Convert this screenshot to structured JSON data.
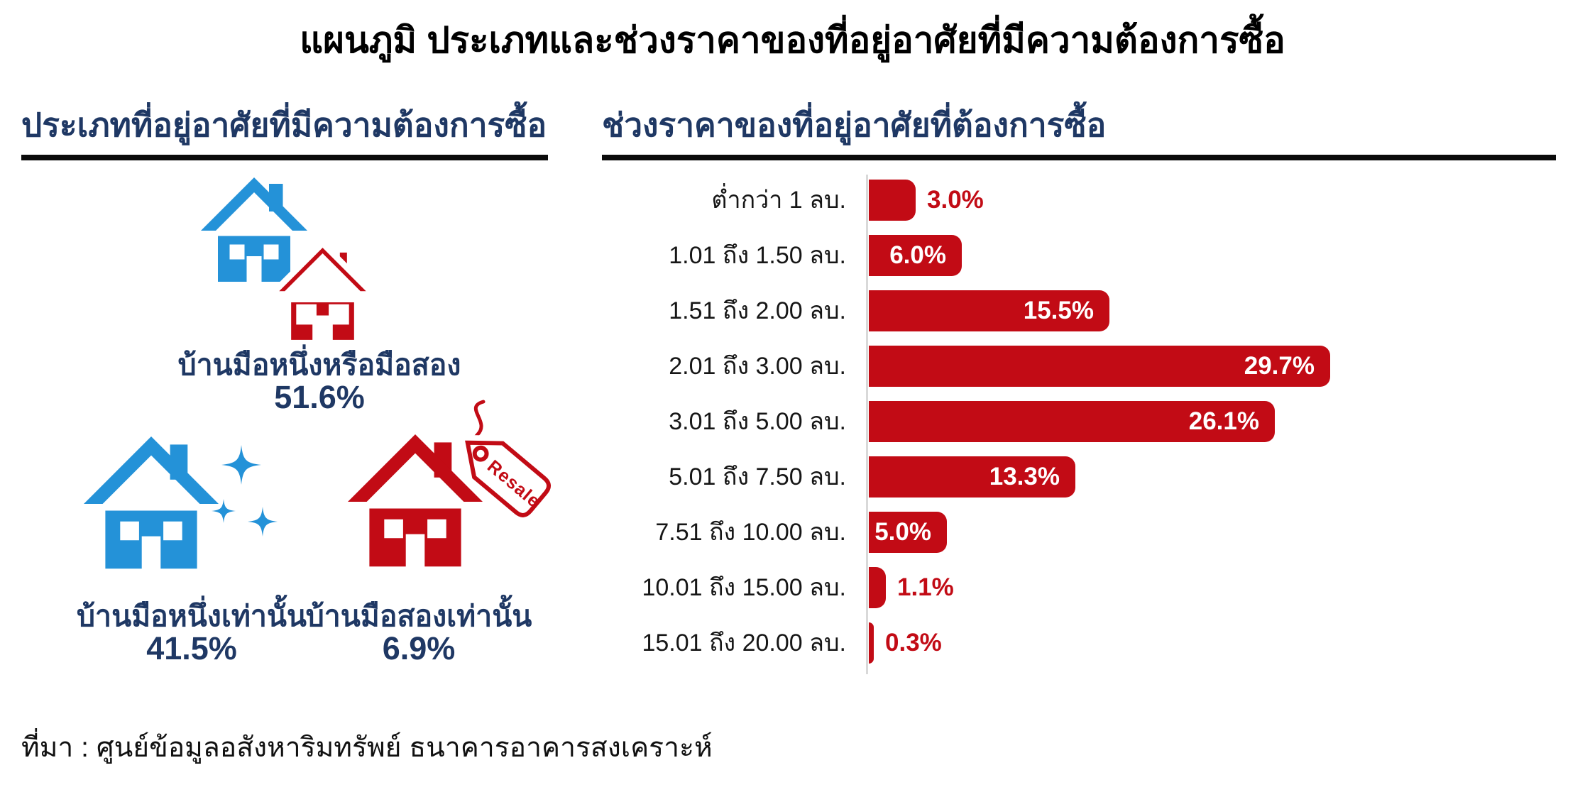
{
  "title": "แผนภูมิ ประเภทและช่วงราคาของที่อยู่อาศัยที่มีความต้องการซื้อ",
  "source": "ที่มา : ศูนย์ข้อมูลอสังหาริมทรัพย์ ธนาคารอาคารสงเคราะห์",
  "colors": {
    "red": "#C20B15",
    "blue": "#2492D8",
    "navy": "#1F3864",
    "axis_line": "#D9D9D9"
  },
  "chart_data": [
    {
      "type": "pictogram",
      "title": "ประเภทที่อยู่อาศัยที่มีความต้องการซื้อ",
      "categories": [
        "บ้านมือหนึ่งหรือมือสอง",
        "บ้านมือหนึ่งเท่านั้น",
        "บ้านมือสองเท่านั้น"
      ],
      "values": [
        51.6,
        41.5,
        6.9
      ],
      "value_labels": [
        "51.6%",
        "41.5%",
        "6.9%"
      ],
      "icons": [
        "house-new-or-resale",
        "house-new-sparkles",
        "house-resale-tag"
      ],
      "tag_label": "Resale",
      "unit": "%"
    },
    {
      "type": "bar",
      "orientation": "horizontal",
      "title": "ช่วงราคาของที่อยู่อาศัยที่ต้องการซื้อ",
      "categories": [
        "ต่ำกว่า 1 ลบ.",
        "1.01 ถึง 1.50 ลบ.",
        "1.51 ถึง 2.00 ลบ.",
        "2.01 ถึง 3.00 ลบ.",
        "3.01 ถึง 5.00 ลบ.",
        "5.01 ถึง 7.50 ลบ.",
        "7.51 ถึง 10.00 ลบ.",
        "10.01 ถึง 15.00 ลบ.",
        "15.01 ถึง 20.00 ลบ."
      ],
      "values": [
        3.0,
        6.0,
        15.5,
        29.7,
        26.1,
        13.3,
        5.0,
        1.1,
        0.3
      ],
      "value_labels": [
        "3.0%",
        "6.0%",
        "15.5%",
        "29.7%",
        "26.1%",
        "13.3%",
        "5.0%",
        "1.1%",
        "0.3%"
      ],
      "bar_color": "#C20B15",
      "xlim": [
        0,
        30
      ],
      "grid": false,
      "axis_ticks_visible": false,
      "label_position": "inside-end, outside-end for values below 4.5%"
    }
  ]
}
